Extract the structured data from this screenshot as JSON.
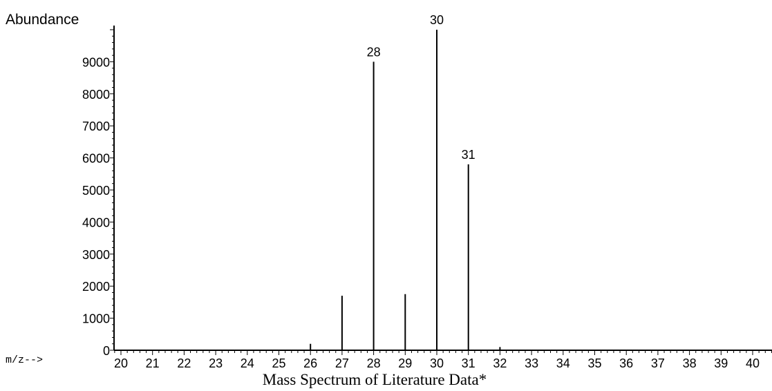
{
  "chart_data": {
    "type": "bar",
    "ylabel": "Abundance",
    "xlabel": "m/z-->",
    "caption": "Mass Spectrum of Literature Data*",
    "xlim": [
      19.8,
      40.6
    ],
    "ylim": [
      0,
      10000
    ],
    "xticks": [
      20,
      21,
      22,
      23,
      24,
      25,
      26,
      27,
      28,
      29,
      30,
      31,
      32,
      33,
      34,
      35,
      36,
      37,
      38,
      39,
      40
    ],
    "yticks": [
      0,
      1000,
      2000,
      3000,
      4000,
      5000,
      6000,
      7000,
      8000,
      9000
    ],
    "x": [
      26,
      27,
      28,
      29,
      30,
      31,
      32
    ],
    "values": [
      200,
      1700,
      9000,
      1750,
      9999,
      5800,
      100
    ],
    "peak_labels": [
      {
        "x": 28,
        "label": "28"
      },
      {
        "x": 30,
        "label": "30"
      },
      {
        "x": 31,
        "label": "31"
      }
    ],
    "grid": false,
    "colors": {
      "bars": "#000000",
      "axis": "#000000",
      "background": "#ffffff"
    }
  }
}
